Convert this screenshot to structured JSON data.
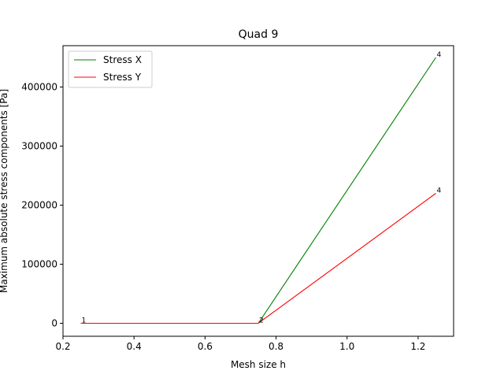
{
  "chart_data": {
    "type": "line",
    "title": "Quad 9",
    "xlabel": "Mesh size h",
    "ylabel": "Maximum absolute stress components [Pa]",
    "xlim": [
      0.2,
      1.3
    ],
    "ylim": [
      -22000,
      470000
    ],
    "xticks": [
      "0.2",
      "0.4",
      "0.6",
      "0.8",
      "1.0",
      "1.2"
    ],
    "yticks": [
      "0",
      "100000",
      "200000",
      "300000",
      "400000"
    ],
    "grid": false,
    "legend_position": "top-left",
    "x": [
      0.25,
      0.75,
      1.25
    ],
    "series": [
      {
        "name": "Stress X",
        "color": "#008000",
        "values": [
          0,
          0,
          450000
        ]
      },
      {
        "name": "Stress Y",
        "color": "#ff0000",
        "values": [
          0,
          0,
          220000
        ]
      }
    ],
    "point_labels": [
      {
        "x": 0.25,
        "y": 0,
        "text": "1"
      },
      {
        "x": 0.75,
        "y": 0,
        "text": "2"
      },
      {
        "x": 1.25,
        "y": 450000,
        "text": "4"
      },
      {
        "x": 1.25,
        "y": 220000,
        "text": "4"
      }
    ]
  }
}
